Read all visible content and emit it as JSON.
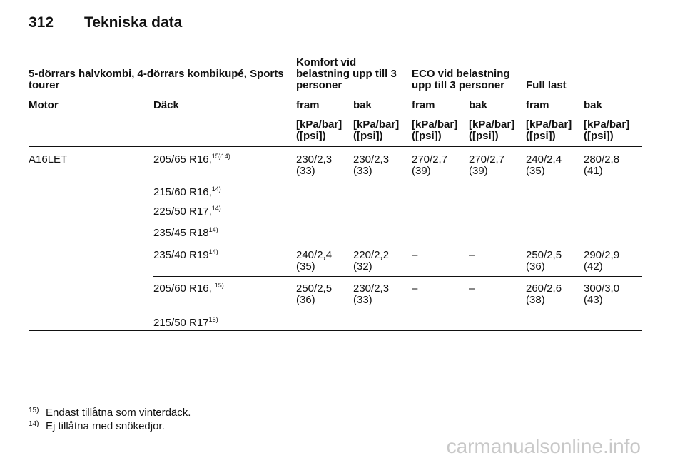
{
  "header": {
    "page_number": "312",
    "title": "Tekniska data"
  },
  "table": {
    "group_headers": [
      [
        "5-dörrars halvkombi, 4-dörrars kombikupé, Sports",
        "tourer"
      ],
      [
        "Komfort vid",
        "belastning upp till 3",
        "personer"
      ],
      [
        "ECO vid belastning",
        "upp till 3 personer"
      ],
      [
        "Full last"
      ]
    ],
    "column_headers": [
      "Motor",
      "Däck",
      "fram",
      "bak",
      "fram",
      "bak",
      "fram",
      "bak"
    ],
    "units": [
      [
        "[kPa/bar]",
        "([psi])"
      ],
      [
        "[kPa/bar]",
        "([psi])"
      ],
      [
        "[kPa/bar]",
        "([psi])"
      ],
      [
        "[kPa/bar]",
        "([psi])"
      ],
      [
        "[kPa/bar]",
        "([psi])"
      ],
      [
        "[kPa/bar]",
        "([psi])"
      ]
    ],
    "engine": "A16LET",
    "rows": [
      {
        "tire": "205/65 R16,",
        "note": "15)14)",
        "values": [
          [
            "230/2,3",
            "(33)"
          ],
          [
            "230/2,3",
            "(33)"
          ],
          [
            "270/2,7",
            "(39)"
          ],
          [
            "270/2,7",
            "(39)"
          ],
          [
            "240/2,4",
            "(35)"
          ],
          [
            "280/2,8",
            "(41)"
          ]
        ]
      },
      {
        "tire": "215/60 R16,",
        "note": "14)"
      },
      {
        "tire": "225/50 R17,",
        "note": "14)"
      },
      {
        "tire": "235/45 R18",
        "note": "14)"
      },
      {
        "tire": "235/40 R19",
        "note": "14)",
        "values": [
          [
            "240/2,4",
            "(35)"
          ],
          [
            "220/2,2",
            "(32)"
          ],
          [
            "–"
          ],
          [
            "–"
          ],
          [
            "250/2,5",
            "(36)"
          ],
          [
            "290/2,9",
            "(42)"
          ]
        ]
      },
      {
        "tire": "205/60 R16,",
        "note": "15)",
        "values": [
          [
            "250/2,5",
            "(36)"
          ],
          [
            "230/2,3",
            "(33)"
          ],
          [
            "–"
          ],
          [
            "–"
          ],
          [
            "260/2,6",
            "(38)"
          ],
          [
            "300/3,0",
            "(43)"
          ]
        ]
      },
      {
        "tire": "215/50 R17",
        "note": "15)"
      }
    ]
  },
  "footnotes": [
    {
      "mark": "15)",
      "text": "Endast tillåtna som vinterdäck."
    },
    {
      "mark": "14)",
      "text": "Ej tillåtna med snökedjor."
    }
  ],
  "watermark": "carmanualsonline.info"
}
